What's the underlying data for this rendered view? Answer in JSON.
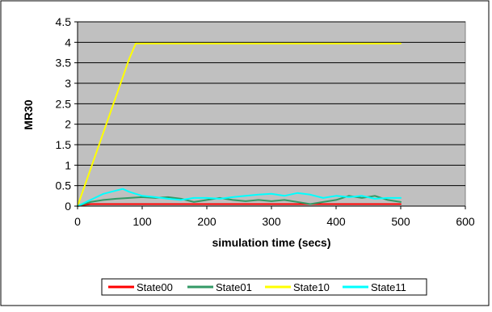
{
  "chart_data": {
    "type": "line",
    "title": "",
    "xlabel": "simulation time (secs)",
    "ylabel": "MR30",
    "xlim": [
      0,
      600
    ],
    "ylim": [
      0,
      4.5
    ],
    "xticks": [
      0,
      100,
      200,
      300,
      400,
      500,
      600
    ],
    "yticks": [
      0,
      0.5,
      1,
      1.5,
      2,
      2.5,
      3,
      3.5,
      4,
      4.5
    ],
    "grid": "horizontal",
    "legend_position": "bottom",
    "plot_background": "#C0C0C0",
    "series": [
      {
        "name": "State00",
        "color": "#FF0000",
        "x": [
          0,
          10,
          20,
          100,
          200,
          300,
          400,
          500
        ],
        "y": [
          0,
          0.03,
          0.05,
          0.05,
          0.05,
          0.05,
          0.05,
          0.05
        ]
      },
      {
        "name": "State01",
        "color": "#339966",
        "x": [
          0,
          20,
          40,
          60,
          80,
          100,
          120,
          140,
          160,
          180,
          200,
          220,
          240,
          260,
          280,
          300,
          320,
          340,
          360,
          380,
          400,
          420,
          440,
          460,
          480,
          500
        ],
        "y": [
          0,
          0.1,
          0.15,
          0.18,
          0.2,
          0.22,
          0.2,
          0.22,
          0.18,
          0.1,
          0.15,
          0.2,
          0.15,
          0.12,
          0.15,
          0.12,
          0.15,
          0.1,
          0.05,
          0.1,
          0.15,
          0.25,
          0.2,
          0.25,
          0.15,
          0.1
        ]
      },
      {
        "name": "State10",
        "color": "#FFFF00",
        "x": [
          0,
          20,
          40,
          60,
          80,
          90,
          100,
          200,
          300,
          400,
          500
        ],
        "y": [
          0,
          0.9,
          1.8,
          2.7,
          3.6,
          3.97,
          3.97,
          3.97,
          3.97,
          3.97,
          3.97
        ]
      },
      {
        "name": "State11",
        "color": "#00FFFF",
        "x": [
          0,
          20,
          40,
          60,
          70,
          80,
          90,
          100,
          120,
          140,
          160,
          180,
          200,
          220,
          240,
          260,
          280,
          300,
          320,
          340,
          360,
          380,
          400,
          420,
          440,
          460,
          480,
          500
        ],
        "y": [
          0,
          0.15,
          0.3,
          0.38,
          0.42,
          0.35,
          0.3,
          0.25,
          0.22,
          0.18,
          0.15,
          0.2,
          0.2,
          0.18,
          0.22,
          0.25,
          0.28,
          0.3,
          0.25,
          0.32,
          0.28,
          0.2,
          0.25,
          0.22,
          0.25,
          0.18,
          0.2,
          0.2
        ]
      }
    ]
  }
}
